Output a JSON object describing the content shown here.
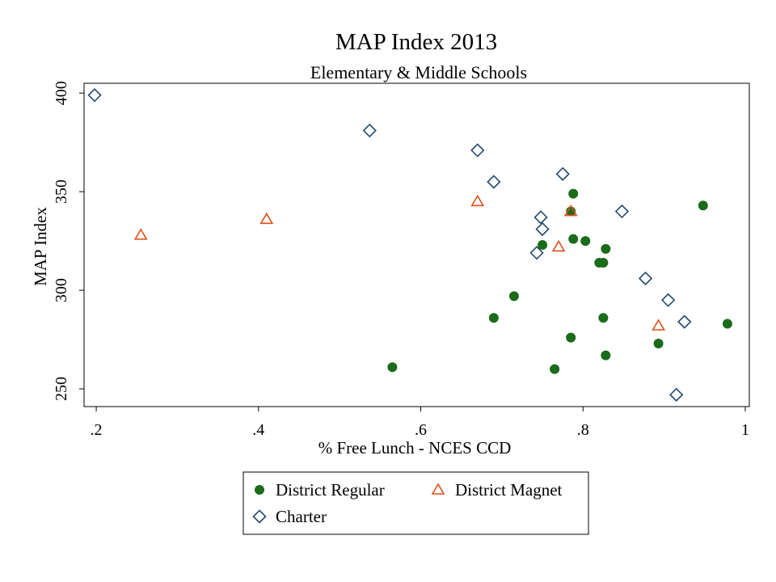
{
  "chart_data": {
    "type": "scatter",
    "title": "MAP Index 2013",
    "subtitle": "Elementary & Middle Schools",
    "xlabel": "% Free Lunch - NCES CCD",
    "ylabel": "MAP Index",
    "xlim": [
      0.185,
      1.005
    ],
    "ylim": [
      241,
      405
    ],
    "xticks": [
      {
        "value": 0.2,
        "label": ".2"
      },
      {
        "value": 0.4,
        "label": ".4"
      },
      {
        "value": 0.6,
        "label": ".6"
      },
      {
        "value": 0.8,
        "label": ".8"
      },
      {
        "value": 1.0,
        "label": "1"
      }
    ],
    "yticks": [
      {
        "value": 250,
        "label": "250"
      },
      {
        "value": 300,
        "label": "300"
      },
      {
        "value": 350,
        "label": "350"
      },
      {
        "value": 400,
        "label": "400"
      }
    ],
    "grid": false,
    "legend_position": "bottom",
    "series": [
      {
        "name": "District Regular",
        "marker": "circle",
        "color": "#1a6b1a",
        "points": [
          [
            0.565,
            261
          ],
          [
            0.69,
            286
          ],
          [
            0.715,
            297
          ],
          [
            0.75,
            323
          ],
          [
            0.765,
            260
          ],
          [
            0.785,
            276
          ],
          [
            0.785,
            340
          ],
          [
            0.788,
            349
          ],
          [
            0.788,
            326
          ],
          [
            0.803,
            325
          ],
          [
            0.82,
            314
          ],
          [
            0.825,
            314
          ],
          [
            0.825,
            286
          ],
          [
            0.828,
            321
          ],
          [
            0.828,
            267
          ],
          [
            0.893,
            273
          ],
          [
            0.948,
            343
          ],
          [
            0.978,
            283
          ]
        ]
      },
      {
        "name": "District Magnet",
        "marker": "triangle",
        "color": "#e0501a",
        "points": [
          [
            0.255,
            328
          ],
          [
            0.41,
            336
          ],
          [
            0.67,
            345
          ],
          [
            0.77,
            322
          ],
          [
            0.785,
            340
          ],
          [
            0.893,
            282
          ]
        ]
      },
      {
        "name": "Charter",
        "marker": "diamond",
        "color": "#1f4a70",
        "points": [
          [
            0.198,
            399
          ],
          [
            0.537,
            381
          ],
          [
            0.67,
            371
          ],
          [
            0.69,
            355
          ],
          [
            0.743,
            319
          ],
          [
            0.748,
            337
          ],
          [
            0.75,
            331
          ],
          [
            0.775,
            359
          ],
          [
            0.848,
            340
          ],
          [
            0.877,
            306
          ],
          [
            0.905,
            295
          ],
          [
            0.915,
            247
          ],
          [
            0.925,
            284
          ]
        ]
      }
    ]
  }
}
